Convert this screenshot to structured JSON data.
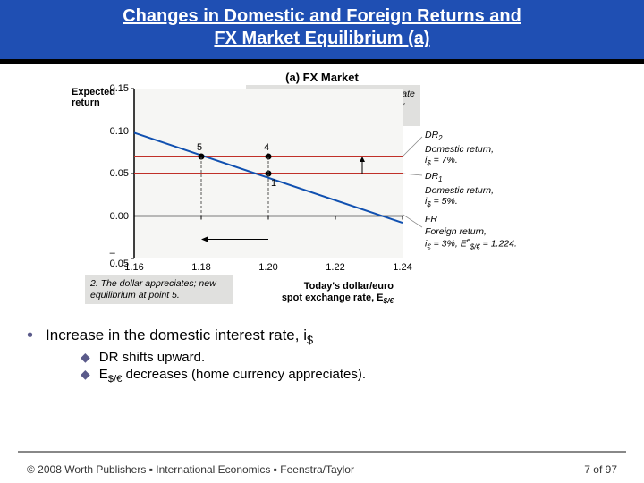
{
  "title": {
    "line1": "Changes in Domestic and Foreign Returns and",
    "line2": "FX Market Equilibrium (a)"
  },
  "figure": {
    "subtitle": "(a) FX Market",
    "ylabel_line1": "Expected",
    "ylabel_line2": "return",
    "xlabel_line1": "Today's dollar/euro",
    "xlabel_line2": "spot exchange rate, E",
    "xlabel_sub": "$/€",
    "callout1": "1. An increase in the home interest rate shifts the DR curve up, making dollar deposits more attractive.",
    "callout2": "2. The dollar appreciates; new equilibrium at point 5.",
    "axis": {
      "ylim": [
        -0.05,
        0.15
      ],
      "yticks": [
        -0.05,
        0.0,
        0.05,
        0.1,
        0.15
      ],
      "ytick_labels": [
        "–0.05",
        "0.00",
        "0.05",
        "0.10",
        "0.15"
      ],
      "xlim": [
        1.16,
        1.24
      ],
      "xticks": [
        1.16,
        1.18,
        1.2,
        1.22,
        1.24
      ],
      "xtick_labels": [
        "1.16",
        "1.18",
        "1.20",
        "1.22",
        "1.24"
      ],
      "bg_color": "#f6f6f4"
    },
    "lines": {
      "DR1": {
        "color": "#c03028",
        "width": 2,
        "y": 0.05
      },
      "DR2": {
        "color": "#c03028",
        "width": 2,
        "y": 0.07
      },
      "FR": {
        "color": "#1050b0",
        "width": 2,
        "x0": 1.16,
        "y0": 0.098,
        "x1": 1.24,
        "y1": -0.008
      }
    },
    "points": {
      "p5": {
        "x": 1.18,
        "y": 0.07,
        "label": "5"
      },
      "p4": {
        "x": 1.2,
        "y": 0.07,
        "label": "4"
      },
      "p1": {
        "x": 1.2,
        "y": 0.05,
        "label": "1"
      }
    },
    "line_labels": {
      "DR2": {
        "tag": "DR",
        "sub": "2",
        "desc1": "Domestic return,",
        "desc2": "i",
        "desc2b": " = 7%.",
        "sub2": "$"
      },
      "DR1": {
        "tag": "DR",
        "sub": "1",
        "desc1": "Domestic return,",
        "desc2": "i",
        "desc2b": " = 5%.",
        "sub2": "$"
      },
      "FR": {
        "tag": "FR",
        "desc1": "Foreign return,",
        "desc2": "i",
        "desc2b": " = 3%, E",
        "sub2": "€",
        "desc3": " = 1.224.",
        "sup": "e",
        "sub3": "$/€"
      }
    }
  },
  "bullets": {
    "main": "Increase in the domestic interest rate, i",
    "main_sub": "$",
    "sub1": "DR shifts upward.",
    "sub2a": "E",
    "sub2_sub": "$/€",
    "sub2b": " decreases (home currency appreciates)."
  },
  "footer": {
    "copyright": "© 2008 Worth Publishers ▪ International Economics ▪ Feenstra/Taylor",
    "page_current": "7",
    "page_of": "of",
    "page_total": "97"
  }
}
